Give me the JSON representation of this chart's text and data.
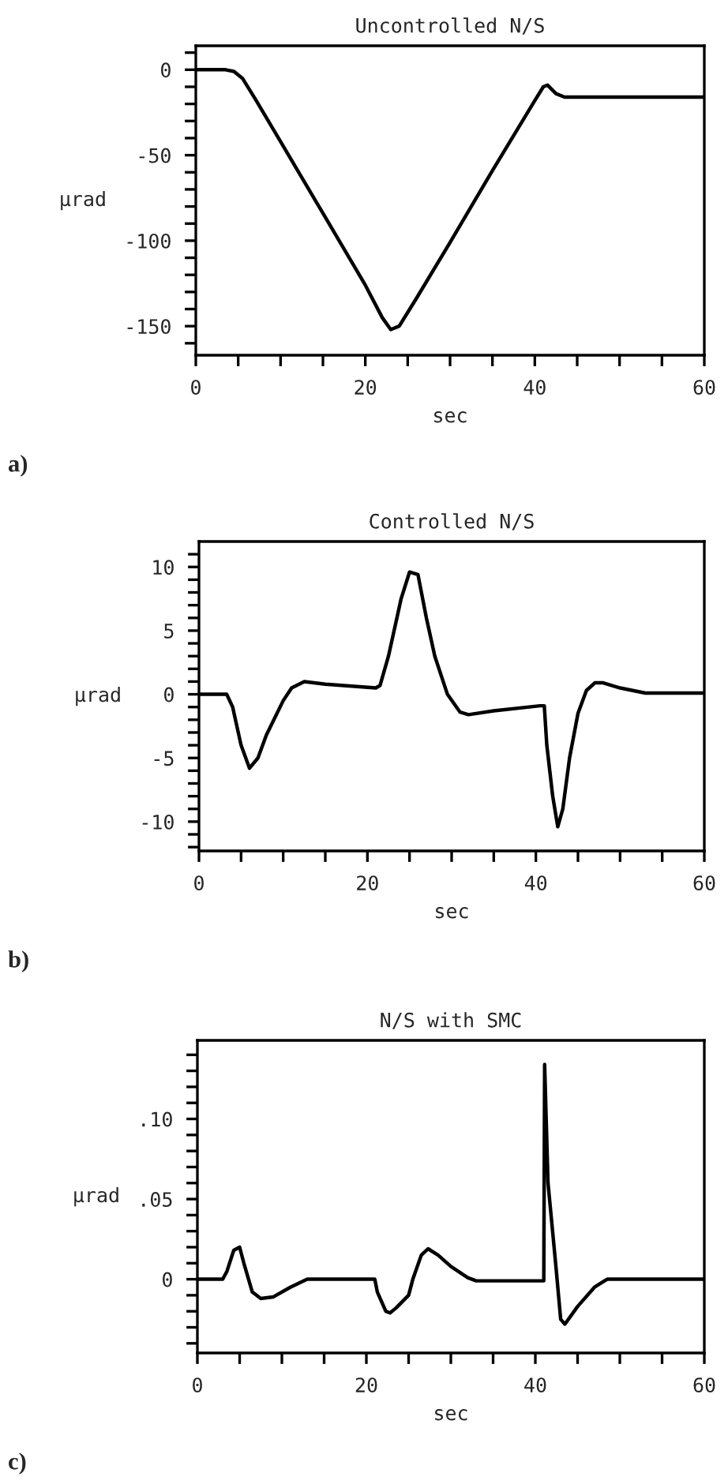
{
  "chart_data": [
    {
      "type": "line",
      "title": "Uncontrolled N/S",
      "xlabel": "sec",
      "ylabel": "µrad",
      "annotations": [
        "a)"
      ],
      "xlim": [
        0,
        60
      ],
      "ylim": [
        -167,
        14
      ],
      "xticks": [
        0,
        {
          "value": 5,
          "label": null
        },
        {
          "value": 10,
          "label": null
        },
        {
          "value": 15,
          "label": null
        },
        20,
        {
          "value": 25,
          "label": null
        },
        {
          "value": 30,
          "label": null
        },
        {
          "value": 35,
          "label": null
        },
        40,
        {
          "value": 45,
          "label": null
        },
        {
          "value": 50,
          "label": null
        },
        {
          "value": 55,
          "label": null
        },
        60
      ],
      "yticks": [
        {
          "value": 10,
          "label": null
        },
        0,
        {
          "value": -10,
          "label": null
        },
        {
          "value": -20,
          "label": null
        },
        {
          "value": -30,
          "label": null
        },
        {
          "value": -40,
          "label": null
        },
        -50,
        {
          "value": -60,
          "label": null
        },
        {
          "value": -70,
          "label": null
        },
        {
          "value": -80,
          "label": null
        },
        {
          "value": -90,
          "label": null
        },
        -100,
        {
          "value": -110,
          "label": null
        },
        {
          "value": -120,
          "label": null
        },
        {
          "value": -130,
          "label": null
        },
        {
          "value": -140,
          "label": null
        },
        -150,
        {
          "value": -160,
          "label": null
        }
      ],
      "series": [
        {
          "color": "#000000",
          "x": [
            0,
            3.5,
            4.5,
            5.5,
            7,
            10,
            15,
            20,
            22,
            23,
            24,
            26,
            30,
            35,
            40,
            41,
            41.5,
            42.5,
            43.5,
            60
          ],
          "values": [
            0,
            0,
            -1,
            -5,
            -17,
            -42,
            -84,
            -126,
            -145,
            -152,
            -150,
            -134,
            -101,
            -59,
            -18,
            -10,
            -9,
            -14,
            -16,
            -16
          ]
        }
      ]
    },
    {
      "type": "line",
      "title": "Controlled N/S",
      "xlabel": "sec",
      "ylabel": "µrad",
      "annotations": [
        "b)"
      ],
      "xlim": [
        0,
        60
      ],
      "ylim": [
        -12.3,
        12
      ],
      "xticks": [
        0,
        {
          "value": 5,
          "label": null
        },
        {
          "value": 10,
          "label": null
        },
        {
          "value": 15,
          "label": null
        },
        20,
        {
          "value": 25,
          "label": null
        },
        {
          "value": 30,
          "label": null
        },
        {
          "value": 35,
          "label": null
        },
        40,
        {
          "value": 45,
          "label": null
        },
        {
          "value": 50,
          "label": null
        },
        {
          "value": 55,
          "label": null
        },
        60
      ],
      "yticks": [
        {
          "value": 11,
          "label": null
        },
        10,
        {
          "value": 9,
          "label": null
        },
        {
          "value": 8,
          "label": null
        },
        {
          "value": 7,
          "label": null
        },
        {
          "value": 6,
          "label": null
        },
        5,
        {
          "value": 4,
          "label": null
        },
        {
          "value": 3,
          "label": null
        },
        {
          "value": 2,
          "label": null
        },
        {
          "value": 1,
          "label": null
        },
        0,
        {
          "value": -1,
          "label": null
        },
        {
          "value": -2,
          "label": null
        },
        {
          "value": -3,
          "label": null
        },
        {
          "value": -4,
          "label": null
        },
        -5,
        {
          "value": -6,
          "label": null
        },
        {
          "value": -7,
          "label": null
        },
        {
          "value": -8,
          "label": null
        },
        {
          "value": -9,
          "label": null
        },
        -10,
        {
          "value": -11,
          "label": null
        },
        {
          "value": -12,
          "label": null
        }
      ],
      "series": [
        {
          "color": "#000000",
          "x": [
            0,
            3.3,
            4,
            5,
            6,
            7,
            8,
            10,
            11,
            12.5,
            15,
            21,
            21.5,
            22.5,
            24,
            25,
            26,
            27,
            28,
            29.5,
            31,
            32,
            35,
            40.5,
            41,
            41.3,
            42,
            42.6,
            43.2,
            44,
            45,
            46,
            47,
            48,
            50,
            53,
            60
          ],
          "values": [
            0,
            0,
            -1,
            -4,
            -5.8,
            -5,
            -3.2,
            -0.5,
            0.5,
            1,
            0.8,
            0.5,
            0.7,
            3,
            7.5,
            9.6,
            9.4,
            6,
            3,
            0,
            -1.4,
            -1.6,
            -1.3,
            -0.9,
            -0.9,
            -4,
            -8,
            -10.4,
            -9,
            -5,
            -1.5,
            0.3,
            0.9,
            0.9,
            0.5,
            0.1,
            0.1
          ]
        }
      ]
    },
    {
      "type": "line",
      "title": "N/S with SMC",
      "xlabel": "sec",
      "ylabel": "µrad",
      "annotations": [
        "c)"
      ],
      "xlim": [
        0,
        60
      ],
      "ylim": [
        -0.046,
        0.149
      ],
      "xticks": [
        0,
        {
          "value": 5,
          "label": null
        },
        {
          "value": 10,
          "label": null
        },
        {
          "value": 15,
          "label": null
        },
        20,
        {
          "value": 25,
          "label": null
        },
        {
          "value": 30,
          "label": null
        },
        {
          "value": 35,
          "label": null
        },
        40,
        {
          "value": 45,
          "label": null
        },
        {
          "value": 50,
          "label": null
        },
        {
          "value": 55,
          "label": null
        },
        60
      ],
      "yticks": [
        {
          "value": 0.14,
          "label": null
        },
        {
          "value": 0.13,
          "label": null
        },
        {
          "value": 0.12,
          "label": null
        },
        {
          "value": 0.11,
          "label": null
        },
        {
          "value": 0.1,
          "label": ".10"
        },
        {
          "value": 0.09,
          "label": null
        },
        {
          "value": 0.08,
          "label": null
        },
        {
          "value": 0.07,
          "label": null
        },
        {
          "value": 0.06,
          "label": null
        },
        {
          "value": 0.05,
          "label": ".05"
        },
        {
          "value": 0.04,
          "label": null
        },
        {
          "value": 0.03,
          "label": null
        },
        {
          "value": 0.02,
          "label": null
        },
        {
          "value": 0.01,
          "label": null
        },
        0,
        {
          "value": -0.01,
          "label": null
        },
        {
          "value": -0.02,
          "label": null
        },
        {
          "value": -0.03,
          "label": null
        },
        {
          "value": -0.04,
          "label": null
        }
      ],
      "series": [
        {
          "color": "#000000",
          "x": [
            0,
            3,
            3.5,
            4.3,
            5,
            5.5,
            6.5,
            7.5,
            9,
            11,
            13,
            21,
            21.3,
            22.3,
            22.8,
            23.5,
            25,
            25.5,
            26.5,
            27.3,
            28.5,
            30,
            32,
            33,
            41,
            41.1,
            41.5,
            42.4,
            43,
            43.5,
            45,
            47,
            48.5,
            60
          ],
          "values": [
            0,
            0,
            0.005,
            0.018,
            0.02,
            0.01,
            -0.008,
            -0.012,
            -0.011,
            -0.005,
            0,
            0,
            -0.008,
            -0.02,
            -0.021,
            -0.018,
            -0.01,
            0,
            0.015,
            0.019,
            0.015,
            0.008,
            0.001,
            -0.001,
            -0.001,
            0.134,
            0.06,
            0.01,
            -0.025,
            -0.028,
            -0.017,
            -0.005,
            0,
            0
          ]
        }
      ]
    }
  ]
}
